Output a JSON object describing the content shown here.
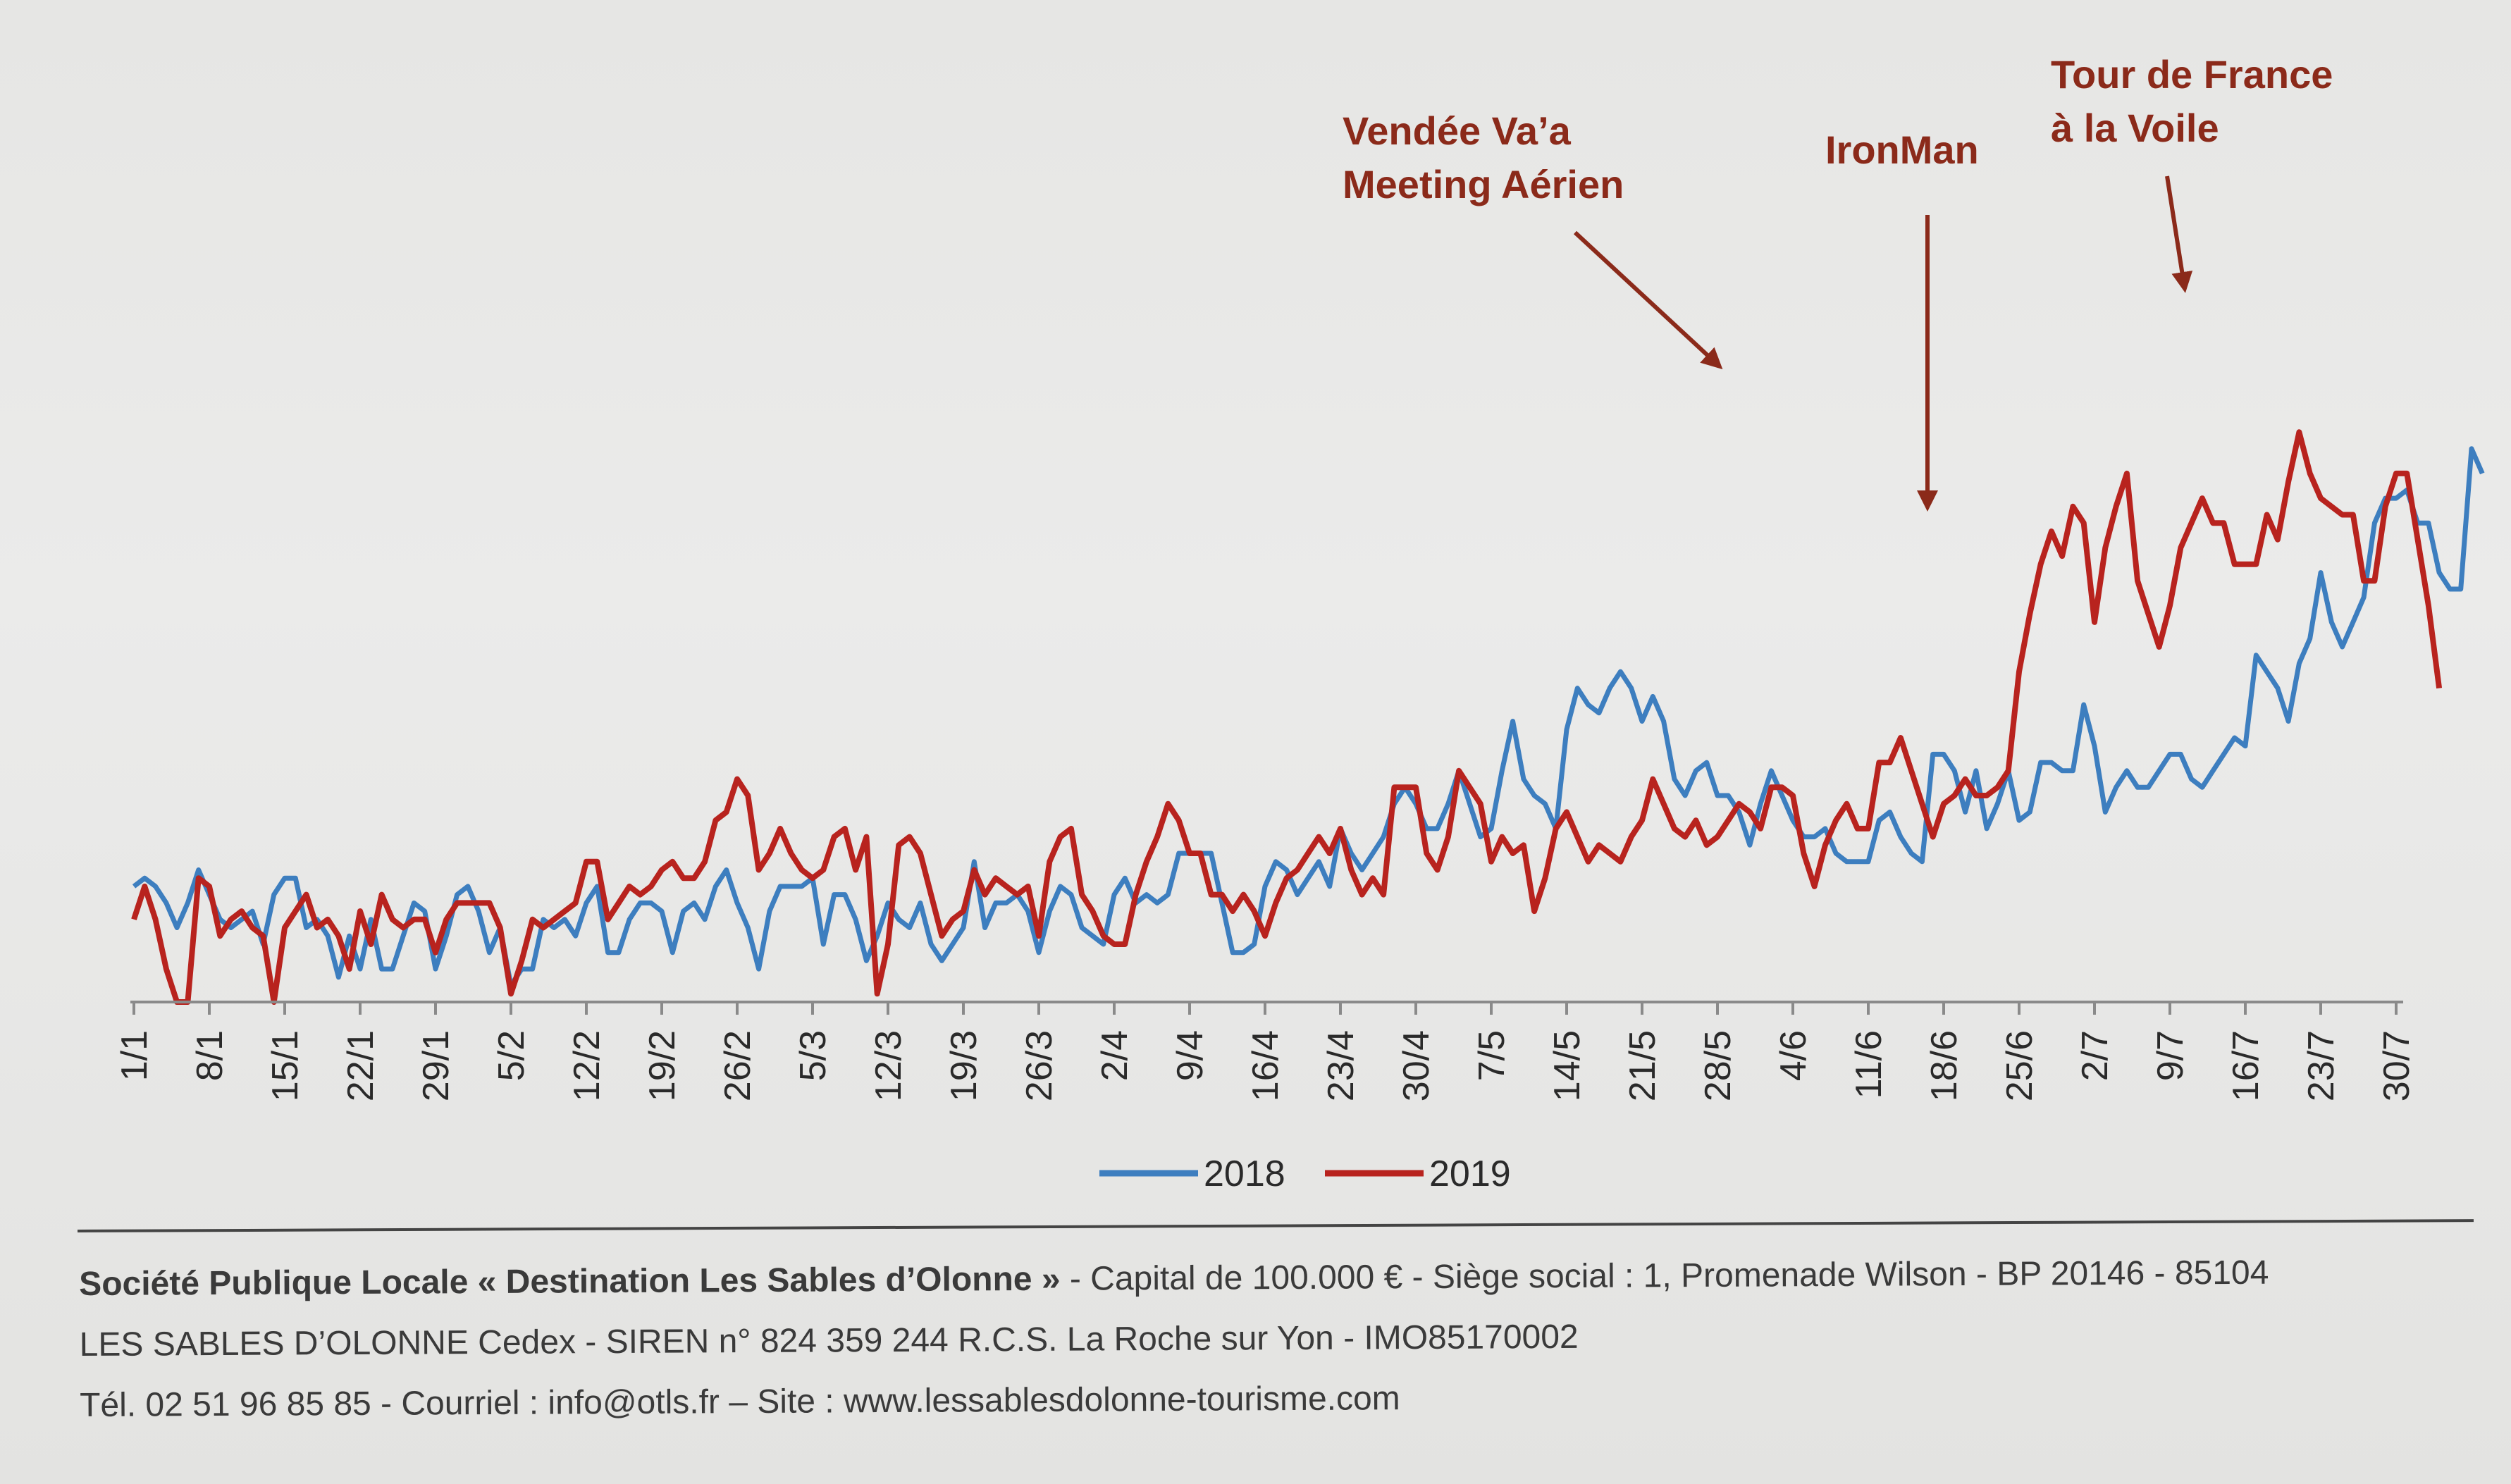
{
  "chart_data": {
    "type": "line",
    "x_tick_labels": [
      "1/1",
      "8/1",
      "15/1",
      "22/1",
      "29/1",
      "5/2",
      "12/2",
      "19/2",
      "26/2",
      "5/3",
      "12/3",
      "19/3",
      "26/3",
      "2/4",
      "9/4",
      "16/4",
      "23/4",
      "30/4",
      "7/5",
      "14/5",
      "21/5",
      "28/5",
      "4/6",
      "11/6",
      "18/6",
      "25/6",
      "2/7",
      "9/7",
      "16/7",
      "23/7",
      "30/7"
    ],
    "days": 211,
    "ylim": [
      0,
      100
    ],
    "legend_position": "bottom-center",
    "series": [
      {
        "name": "2018",
        "color": "#3d7ebf",
        "values": [
          14,
          15,
          14,
          12,
          9,
          12,
          16,
          13,
          10,
          9,
          10,
          11,
          7,
          13,
          15,
          15,
          9,
          10,
          8,
          3,
          8,
          4,
          10,
          4,
          4,
          8,
          12,
          11,
          4,
          8,
          13,
          14,
          11,
          6,
          9,
          2,
          4,
          4,
          10,
          9,
          10,
          8,
          12,
          14,
          6,
          6,
          10,
          12,
          12,
          11,
          6,
          11,
          12,
          10,
          14,
          16,
          12,
          9,
          4,
          11,
          14,
          14,
          14,
          15,
          7,
          13,
          13,
          10,
          5,
          8,
          12,
          10,
          9,
          12,
          7,
          5,
          7,
          9,
          17,
          9,
          12,
          12,
          13,
          11,
          6,
          11,
          14,
          13,
          9,
          8,
          7,
          13,
          15,
          12,
          13,
          12,
          13,
          18,
          18,
          18,
          18,
          12,
          6,
          6,
          7,
          14,
          17,
          16,
          13,
          15,
          17,
          14,
          21,
          18,
          16,
          18,
          20,
          24,
          26,
          24,
          21,
          21,
          24,
          28,
          24,
          20,
          21,
          28,
          34,
          27,
          25,
          24,
          21,
          33,
          38,
          36,
          35,
          38,
          40,
          38,
          34,
          37,
          34,
          27,
          25,
          28,
          29,
          25,
          25,
          23,
          19,
          24,
          28,
          25,
          22,
          20,
          20,
          21,
          18,
          17,
          17,
          17,
          22,
          23,
          20,
          18,
          17,
          30,
          30,
          28,
          23,
          28,
          21,
          24,
          28,
          22,
          23,
          29,
          29,
          28,
          28,
          36,
          31,
          23,
          26,
          28,
          26,
          26,
          28,
          30,
          30,
          27,
          26,
          28,
          30,
          32,
          31,
          42,
          40,
          38,
          34,
          41,
          44,
          52,
          46,
          43,
          46,
          49,
          58,
          61,
          61,
          62,
          58,
          58,
          52,
          50,
          50,
          67,
          64
        ]
      },
      {
        "name": "2019",
        "color": "#b8231e",
        "values": [
          10,
          14,
          10,
          4,
          0,
          0,
          15,
          14,
          8,
          10,
          11,
          9,
          8,
          0,
          9,
          11,
          13,
          9,
          10,
          8,
          4,
          11,
          7,
          13,
          10,
          9,
          10,
          10,
          6,
          10,
          12,
          12,
          12,
          12,
          9,
          1,
          5,
          10,
          9,
          10,
          11,
          12,
          17,
          17,
          10,
          12,
          14,
          13,
          14,
          16,
          17,
          15,
          15,
          17,
          22,
          23,
          27,
          25,
          16,
          18,
          21,
          18,
          16,
          15,
          16,
          20,
          21,
          16,
          20,
          1,
          7,
          19,
          20,
          18,
          13,
          8,
          10,
          11,
          16,
          13,
          15,
          14,
          13,
          14,
          8,
          17,
          20,
          21,
          13,
          11,
          8,
          7,
          7,
          13,
          17,
          20,
          24,
          22,
          18,
          18,
          13,
          13,
          11,
          13,
          11,
          8,
          12,
          15,
          16,
          18,
          20,
          18,
          21,
          16,
          13,
          15,
          13,
          26,
          26,
          26,
          18,
          16,
          20,
          28,
          26,
          24,
          17,
          20,
          18,
          19,
          11,
          15,
          21,
          23,
          20,
          17,
          19,
          18,
          17,
          20,
          22,
          27,
          24,
          21,
          20,
          22,
          19,
          20,
          22,
          24,
          23,
          21,
          26,
          26,
          25,
          18,
          14,
          19,
          22,
          24,
          21,
          21,
          29,
          29,
          32,
          28,
          24,
          20,
          24,
          25,
          27,
          25,
          25,
          26,
          28,
          40,
          47,
          53,
          57,
          54,
          60,
          58,
          46,
          55,
          60,
          64,
          51,
          47,
          43,
          48,
          55,
          58,
          61,
          58,
          58,
          53,
          53,
          53,
          59,
          56,
          63,
          69,
          64,
          61,
          60,
          59,
          59,
          51,
          51,
          60,
          64,
          64,
          56,
          48,
          38
        ]
      }
    ],
    "annotations": [
      {
        "lines": [
          "Vendée Va’a",
          "Meeting Aérien"
        ],
        "day": 149
      },
      {
        "lines": [
          "IronMan"
        ],
        "day": 160
      },
      {
        "lines": [
          "Tour de France",
          "à la Voile"
        ],
        "day": 186
      }
    ]
  },
  "footer": {
    "line1_bold": "Société Publique Locale « Destination Les Sables d’Olonne »",
    "line1_rest": " - Capital de 100.000 € - Siège social : 1, Promenade Wilson - BP 20146 - 85104",
    "line2": "LES SABLES D’OLONNE Cedex - SIREN n° 824 359 244 R.C.S. La Roche sur Yon - IMO85170002",
    "line3": "Tél. 02 51 96 85 85 - Courriel : info@otls.fr – Site : www.lessablesdolonne-tourisme.com"
  }
}
